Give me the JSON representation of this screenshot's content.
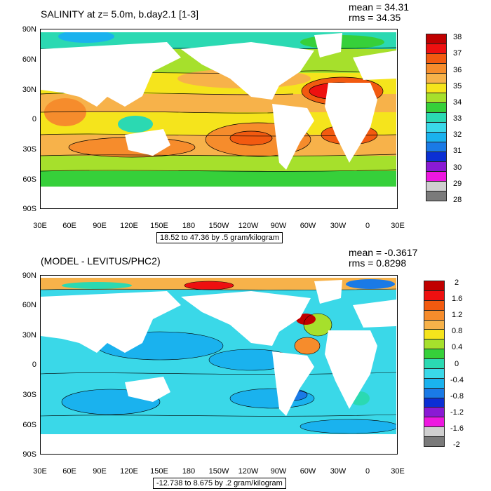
{
  "panels": [
    {
      "title": "SALINITY at z=   5.0m, b.day2.1 [1-3]",
      "mean": "mean = 34.31",
      "rms": "rms = 34.35",
      "range_label": "18.52 to 47.36 by .5 gram/kilogram",
      "lat_labels": [
        "90N",
        "60N",
        "30N",
        "0",
        "30S",
        "60S",
        "90S"
      ],
      "lon_labels": [
        "30E",
        "60E",
        "90E",
        "120E",
        "150E",
        "180",
        "150W",
        "120W",
        "90W",
        "60W",
        "30W",
        "0",
        "30E"
      ],
      "colorbar_labels": [
        "38",
        "37",
        "36",
        "35",
        "34",
        "33",
        "32",
        "31",
        "30",
        "29",
        "28"
      ],
      "colorbar_colors": [
        "#c00000",
        "#ee1010",
        "#f25a10",
        "#f68c2c",
        "#f7b24a",
        "#f5e41c",
        "#a6e02c",
        "#36d03a",
        "#2bd9b2",
        "#3ad8e8",
        "#1ab2ee",
        "#1a7ae6",
        "#0b2fd4",
        "#8a1ad4",
        "#ee18e0",
        "#cfcfcf",
        "#7a7a7a"
      ]
    },
    {
      "title": "(MODEL - LEVITUS/PHC2)",
      "mean": "mean = -0.3617",
      "rms": "rms = 0.8298",
      "range_label": "-12.738 to 8.675 by .2 gram/kilogram",
      "lat_labels": [
        "90N",
        "60N",
        "30N",
        "0",
        "30S",
        "60S",
        "90S"
      ],
      "lon_labels": [
        "30E",
        "60E",
        "90E",
        "120E",
        "150E",
        "180",
        "150W",
        "120W",
        "90W",
        "60W",
        "30W",
        "0",
        "30E"
      ],
      "colorbar_labels": [
        "2",
        "1.6",
        "1.2",
        "0.8",
        "0.4",
        "0",
        "-0.4",
        "-0.8",
        "-1.2",
        "-1.6",
        "-2"
      ],
      "colorbar_colors": [
        "#c00000",
        "#ee1010",
        "#f25a10",
        "#f68c2c",
        "#f7b24a",
        "#f5e41c",
        "#a6e02c",
        "#36d03a",
        "#2bd9b2",
        "#3ad8e8",
        "#1ab2ee",
        "#1a7ae6",
        "#0b2fd4",
        "#8a1ad4",
        "#ee18e0",
        "#cfcfcf",
        "#7a7a7a"
      ]
    }
  ]
}
